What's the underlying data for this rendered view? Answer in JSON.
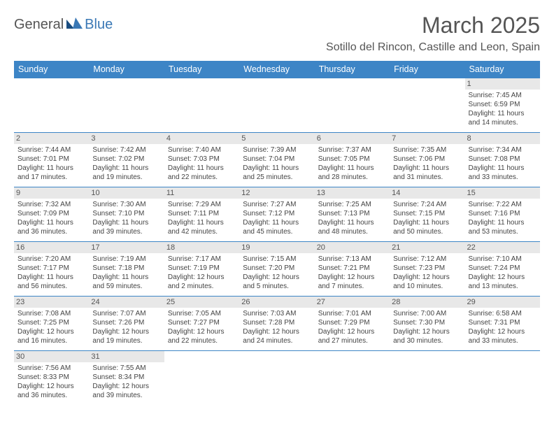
{
  "logo": {
    "text1": "General",
    "text2": "Blue"
  },
  "title": "March 2025",
  "location": "Sotillo del Rincon, Castille and Leon, Spain",
  "colors": {
    "header_bg": "#3d85c6",
    "border": "#3d85c6",
    "daynum_bg": "#e8e8e8",
    "logo_blue": "#3a78b5",
    "text": "#555"
  },
  "weekdays": [
    "Sunday",
    "Monday",
    "Tuesday",
    "Wednesday",
    "Thursday",
    "Friday",
    "Saturday"
  ],
  "weeks": [
    [
      null,
      null,
      null,
      null,
      null,
      null,
      {
        "n": "1",
        "sunrise": "7:45 AM",
        "sunset": "6:59 PM",
        "daylight": "11 hours and 14 minutes."
      }
    ],
    [
      {
        "n": "2",
        "sunrise": "7:44 AM",
        "sunset": "7:01 PM",
        "daylight": "11 hours and 17 minutes."
      },
      {
        "n": "3",
        "sunrise": "7:42 AM",
        "sunset": "7:02 PM",
        "daylight": "11 hours and 19 minutes."
      },
      {
        "n": "4",
        "sunrise": "7:40 AM",
        "sunset": "7:03 PM",
        "daylight": "11 hours and 22 minutes."
      },
      {
        "n": "5",
        "sunrise": "7:39 AM",
        "sunset": "7:04 PM",
        "daylight": "11 hours and 25 minutes."
      },
      {
        "n": "6",
        "sunrise": "7:37 AM",
        "sunset": "7:05 PM",
        "daylight": "11 hours and 28 minutes."
      },
      {
        "n": "7",
        "sunrise": "7:35 AM",
        "sunset": "7:06 PM",
        "daylight": "11 hours and 31 minutes."
      },
      {
        "n": "8",
        "sunrise": "7:34 AM",
        "sunset": "7:08 PM",
        "daylight": "11 hours and 33 minutes."
      }
    ],
    [
      {
        "n": "9",
        "sunrise": "7:32 AM",
        "sunset": "7:09 PM",
        "daylight": "11 hours and 36 minutes."
      },
      {
        "n": "10",
        "sunrise": "7:30 AM",
        "sunset": "7:10 PM",
        "daylight": "11 hours and 39 minutes."
      },
      {
        "n": "11",
        "sunrise": "7:29 AM",
        "sunset": "7:11 PM",
        "daylight": "11 hours and 42 minutes."
      },
      {
        "n": "12",
        "sunrise": "7:27 AM",
        "sunset": "7:12 PM",
        "daylight": "11 hours and 45 minutes."
      },
      {
        "n": "13",
        "sunrise": "7:25 AM",
        "sunset": "7:13 PM",
        "daylight": "11 hours and 48 minutes."
      },
      {
        "n": "14",
        "sunrise": "7:24 AM",
        "sunset": "7:15 PM",
        "daylight": "11 hours and 50 minutes."
      },
      {
        "n": "15",
        "sunrise": "7:22 AM",
        "sunset": "7:16 PM",
        "daylight": "11 hours and 53 minutes."
      }
    ],
    [
      {
        "n": "16",
        "sunrise": "7:20 AM",
        "sunset": "7:17 PM",
        "daylight": "11 hours and 56 minutes."
      },
      {
        "n": "17",
        "sunrise": "7:19 AM",
        "sunset": "7:18 PM",
        "daylight": "11 hours and 59 minutes."
      },
      {
        "n": "18",
        "sunrise": "7:17 AM",
        "sunset": "7:19 PM",
        "daylight": "12 hours and 2 minutes."
      },
      {
        "n": "19",
        "sunrise": "7:15 AM",
        "sunset": "7:20 PM",
        "daylight": "12 hours and 5 minutes."
      },
      {
        "n": "20",
        "sunrise": "7:13 AM",
        "sunset": "7:21 PM",
        "daylight": "12 hours and 7 minutes."
      },
      {
        "n": "21",
        "sunrise": "7:12 AM",
        "sunset": "7:23 PM",
        "daylight": "12 hours and 10 minutes."
      },
      {
        "n": "22",
        "sunrise": "7:10 AM",
        "sunset": "7:24 PM",
        "daylight": "12 hours and 13 minutes."
      }
    ],
    [
      {
        "n": "23",
        "sunrise": "7:08 AM",
        "sunset": "7:25 PM",
        "daylight": "12 hours and 16 minutes."
      },
      {
        "n": "24",
        "sunrise": "7:07 AM",
        "sunset": "7:26 PM",
        "daylight": "12 hours and 19 minutes."
      },
      {
        "n": "25",
        "sunrise": "7:05 AM",
        "sunset": "7:27 PM",
        "daylight": "12 hours and 22 minutes."
      },
      {
        "n": "26",
        "sunrise": "7:03 AM",
        "sunset": "7:28 PM",
        "daylight": "12 hours and 24 minutes."
      },
      {
        "n": "27",
        "sunrise": "7:01 AM",
        "sunset": "7:29 PM",
        "daylight": "12 hours and 27 minutes."
      },
      {
        "n": "28",
        "sunrise": "7:00 AM",
        "sunset": "7:30 PM",
        "daylight": "12 hours and 30 minutes."
      },
      {
        "n": "29",
        "sunrise": "6:58 AM",
        "sunset": "7:31 PM",
        "daylight": "12 hours and 33 minutes."
      }
    ],
    [
      {
        "n": "30",
        "sunrise": "7:56 AM",
        "sunset": "8:33 PM",
        "daylight": "12 hours and 36 minutes."
      },
      {
        "n": "31",
        "sunrise": "7:55 AM",
        "sunset": "8:34 PM",
        "daylight": "12 hours and 39 minutes."
      },
      null,
      null,
      null,
      null,
      null
    ]
  ],
  "labels": {
    "sunrise": "Sunrise:",
    "sunset": "Sunset:",
    "daylight": "Daylight:"
  }
}
